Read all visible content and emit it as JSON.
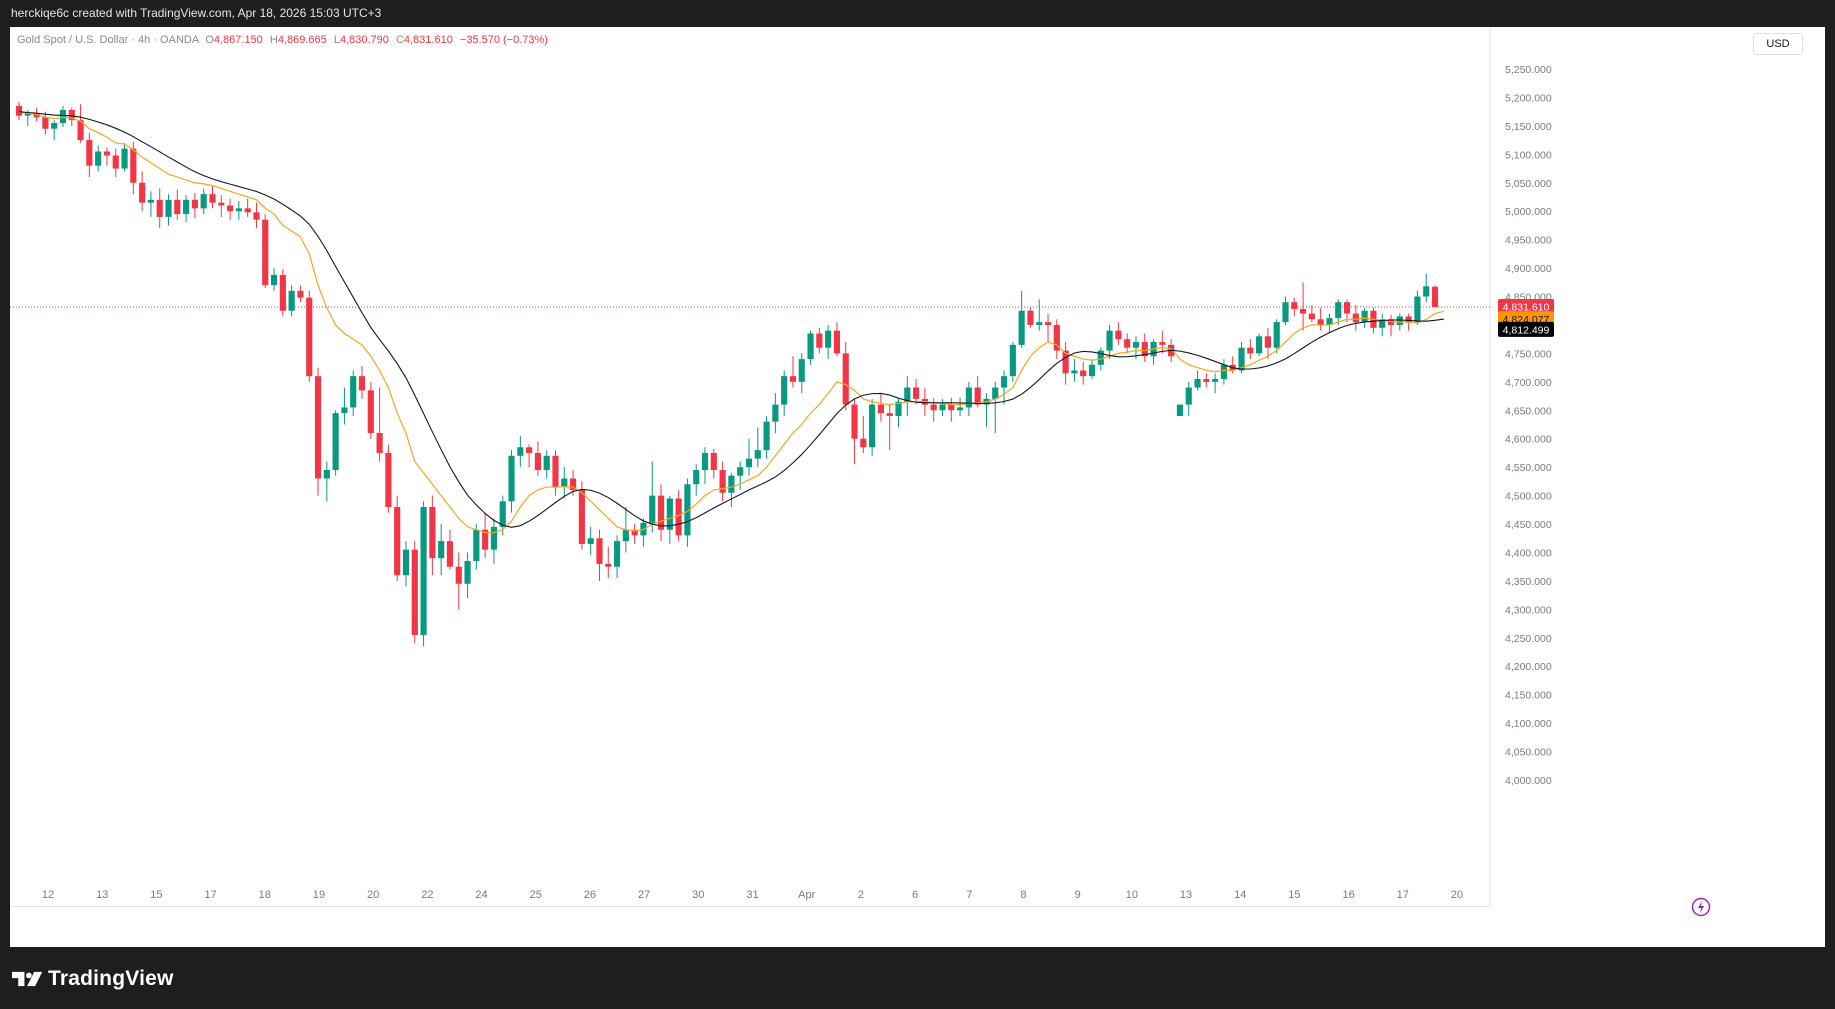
{
  "header": {
    "attribution": "herckiqe6c created with TradingView.com, Apr 18, 2026 15:03 UTC+3"
  },
  "legend": {
    "symbol": "Gold Spot / U.S. Dollar · 4h · OANDA",
    "open_label": "O",
    "open": "4,867.150",
    "high_label": "H",
    "high": "4,869.665",
    "low_label": "L",
    "low": "4,830.790",
    "close_label": "C",
    "close": "4,831.610",
    "change": "−35.570 (−0.73%)"
  },
  "currency": "USD",
  "price_badges": [
    {
      "value": "4,831.610",
      "color": "#f23645",
      "text_color": "#ffffff"
    },
    {
      "value": "4,824.077",
      "color": "#ff9800",
      "text_color": "#131722"
    },
    {
      "value": "4,812.499",
      "color": "#000000",
      "text_color": "#ffffff"
    }
  ],
  "brand": {
    "name": "TradingView"
  },
  "colors": {
    "up": "#089981",
    "down": "#f23645",
    "ema_fast": "#f5a623",
    "ema_slow": "#131722",
    "last_price_line": "#f23645"
  },
  "chart_data": {
    "type": "candlestick",
    "timeframe": "4h",
    "ylim": [
      4000,
      5250
    ],
    "y_ticks": [
      "5,250.000",
      "5,200.000",
      "5,150.000",
      "5,100.000",
      "5,050.000",
      "5,000.000",
      "4,950.000",
      "4,900.000",
      "4,850.000",
      "4,800.000",
      "4,750.000",
      "4,700.000",
      "4,650.000",
      "4,600.000",
      "4,550.000",
      "4,500.000",
      "4,450.000",
      "4,400.000",
      "4,350.000",
      "4,300.000",
      "4,250.000",
      "4,200.000",
      "4,150.000",
      "4,100.000",
      "4,050.000",
      "4,000.000"
    ],
    "x_labels": [
      "12",
      "13",
      "15",
      "17",
      "18",
      "19",
      "20",
      "22",
      "24",
      "25",
      "26",
      "27",
      "30",
      "31",
      "Apr",
      "2",
      "6",
      "7",
      "8",
      "9",
      "10",
      "13",
      "14",
      "15",
      "16",
      "17",
      "20"
    ],
    "last_price": 4831.61,
    "candles": [
      [
        5185,
        5192,
        5160,
        5168
      ],
      [
        5168,
        5178,
        5150,
        5172
      ],
      [
        5172,
        5182,
        5158,
        5165
      ],
      [
        5165,
        5175,
        5135,
        5145
      ],
      [
        5145,
        5160,
        5125,
        5155
      ],
      [
        5155,
        5185,
        5148,
        5178
      ],
      [
        5178,
        5182,
        5150,
        5160
      ],
      [
        5160,
        5188,
        5120,
        5125
      ],
      [
        5125,
        5138,
        5060,
        5080
      ],
      [
        5080,
        5115,
        5070,
        5105
      ],
      [
        5105,
        5112,
        5080,
        5098
      ],
      [
        5098,
        5110,
        5060,
        5075
      ],
      [
        5075,
        5120,
        5070,
        5110
      ],
      [
        5110,
        5122,
        5030,
        5050
      ],
      [
        5050,
        5070,
        5000,
        5015
      ],
      [
        5015,
        5035,
        4990,
        5020
      ],
      [
        5020,
        5040,
        4970,
        4990
      ],
      [
        4990,
        5030,
        4975,
        5020
      ],
      [
        5020,
        5038,
        4985,
        4995
      ],
      [
        4995,
        5028,
        4980,
        5020
      ],
      [
        5020,
        5032,
        4988,
        5005
      ],
      [
        5005,
        5040,
        4995,
        5030
      ],
      [
        5030,
        5045,
        5005,
        5015
      ],
      [
        5015,
        5028,
        4990,
        5010
      ],
      [
        5010,
        5022,
        4985,
        5000
      ],
      [
        5000,
        5018,
        4985,
        5005
      ],
      [
        5005,
        5022,
        4990,
        4998
      ],
      [
        4998,
        5015,
        4970,
        4985
      ],
      [
        4985,
        4995,
        4865,
        4870
      ],
      [
        4870,
        4900,
        4860,
        4888
      ],
      [
        4888,
        4898,
        4815,
        4825
      ],
      [
        4825,
        4870,
        4815,
        4860
      ],
      [
        4860,
        4870,
        4840,
        4848
      ],
      [
        4848,
        4860,
        4700,
        4710
      ],
      [
        4710,
        4725,
        4500,
        4530
      ],
      [
        4530,
        4560,
        4490,
        4545
      ],
      [
        4545,
        4650,
        4535,
        4645
      ],
      [
        4645,
        4690,
        4625,
        4655
      ],
      [
        4655,
        4720,
        4640,
        4710
      ],
      [
        4710,
        4728,
        4670,
        4685
      ],
      [
        4685,
        4700,
        4600,
        4610
      ],
      [
        4610,
        4690,
        4560,
        4575
      ],
      [
        4575,
        4590,
        4470,
        4480
      ],
      [
        4480,
        4500,
        4350,
        4360
      ],
      [
        4360,
        4420,
        4340,
        4405
      ],
      [
        4405,
        4420,
        4240,
        4255
      ],
      [
        4255,
        4490,
        4235,
        4480
      ],
      [
        4480,
        4500,
        4360,
        4390
      ],
      [
        4390,
        4450,
        4360,
        4420
      ],
      [
        4420,
        4440,
        4370,
        4375
      ],
      [
        4375,
        4400,
        4300,
        4345
      ],
      [
        4345,
        4400,
        4320,
        4385
      ],
      [
        4385,
        4450,
        4370,
        4440
      ],
      [
        4440,
        4470,
        4390,
        4405
      ],
      [
        4405,
        4460,
        4380,
        4445
      ],
      [
        4445,
        4500,
        4430,
        4490
      ],
      [
        4490,
        4580,
        4470,
        4570
      ],
      [
        4570,
        4605,
        4550,
        4585
      ],
      [
        4585,
        4590,
        4550,
        4575
      ],
      [
        4575,
        4595,
        4535,
        4545
      ],
      [
        4545,
        4580,
        4530,
        4570
      ],
      [
        4570,
        4580,
        4500,
        4515
      ],
      [
        4515,
        4550,
        4495,
        4530
      ],
      [
        4530,
        4545,
        4500,
        4510
      ],
      [
        4510,
        4525,
        4405,
        4415
      ],
      [
        4415,
        4445,
        4395,
        4425
      ],
      [
        4425,
        4440,
        4350,
        4380
      ],
      [
        4380,
        4410,
        4355,
        4375
      ],
      [
        4375,
        4430,
        4355,
        4420
      ],
      [
        4420,
        4480,
        4400,
        4440
      ],
      [
        4440,
        4450,
        4415,
        4430
      ],
      [
        4430,
        4460,
        4410,
        4452
      ],
      [
        4452,
        4560,
        4435,
        4500
      ],
      [
        4500,
        4520,
        4420,
        4440
      ],
      [
        4440,
        4500,
        4415,
        4495
      ],
      [
        4495,
        4510,
        4420,
        4430
      ],
      [
        4430,
        4530,
        4410,
        4520
      ],
      [
        4520,
        4555,
        4500,
        4545
      ],
      [
        4545,
        4585,
        4520,
        4575
      ],
      [
        4575,
        4582,
        4530,
        4545
      ],
      [
        4545,
        4560,
        4490,
        4505
      ],
      [
        4505,
        4540,
        4480,
        4535
      ],
      [
        4535,
        4560,
        4510,
        4550
      ],
      [
        4550,
        4600,
        4535,
        4565
      ],
      [
        4565,
        4620,
        4550,
        4580
      ],
      [
        4580,
        4640,
        4565,
        4630
      ],
      [
        4630,
        4680,
        4610,
        4660
      ],
      [
        4660,
        4720,
        4640,
        4710
      ],
      [
        4710,
        4745,
        4690,
        4700
      ],
      [
        4700,
        4750,
        4680,
        4740
      ],
      [
        4740,
        4790,
        4730,
        4785
      ],
      [
        4785,
        4795,
        4750,
        4760
      ],
      [
        4760,
        4800,
        4740,
        4790
      ],
      [
        4790,
        4805,
        4745,
        4750
      ],
      [
        4750,
        4770,
        4650,
        4660
      ],
      [
        4660,
        4670,
        4555,
        4600
      ],
      [
        4600,
        4640,
        4575,
        4585
      ],
      [
        4585,
        4670,
        4570,
        4660
      ],
      [
        4660,
        4680,
        4630,
        4645
      ],
      [
        4645,
        4660,
        4580,
        4640
      ],
      [
        4640,
        4670,
        4620,
        4665
      ],
      [
        4665,
        4710,
        4640,
        4690
      ],
      [
        4690,
        4705,
        4660,
        4670
      ],
      [
        4670,
        4690,
        4640,
        4660
      ],
      [
        4660,
        4672,
        4630,
        4650
      ],
      [
        4650,
        4670,
        4640,
        4660
      ],
      [
        4660,
        4672,
        4630,
        4650
      ],
      [
        4650,
        4672,
        4640,
        4655
      ],
      [
        4655,
        4700,
        4640,
        4690
      ],
      [
        4690,
        4710,
        4655,
        4660
      ],
      [
        4660,
        4680,
        4620,
        4670
      ],
      [
        4670,
        4700,
        4610,
        4690
      ],
      [
        4690,
        4720,
        4660,
        4710
      ],
      [
        4710,
        4770,
        4700,
        4765
      ],
      [
        4765,
        4860,
        4760,
        4825
      ],
      [
        4825,
        4830,
        4795,
        4800
      ],
      [
        4800,
        4845,
        4790,
        4805
      ],
      [
        4805,
        4820,
        4770,
        4800
      ],
      [
        4800,
        4810,
        4740,
        4755
      ],
      [
        4755,
        4770,
        4695,
        4715
      ],
      [
        4715,
        4740,
        4700,
        4720
      ],
      [
        4720,
        4735,
        4695,
        4710
      ],
      [
        4710,
        4740,
        4705,
        4730
      ],
      [
        4730,
        4760,
        4720,
        4755
      ],
      [
        4755,
        4800,
        4740,
        4790
      ],
      [
        4790,
        4805,
        4765,
        4775
      ],
      [
        4775,
        4785,
        4750,
        4760
      ],
      [
        4760,
        4780,
        4740,
        4770
      ],
      [
        4770,
        4785,
        4735,
        4745
      ],
      [
        4745,
        4775,
        4730,
        4770
      ],
      [
        4770,
        4790,
        4750,
        4765
      ],
      [
        4765,
        4775,
        4735,
        4745
      ],
      [
        4640,
        4660,
        4640,
        4660
      ],
      [
        4660,
        4700,
        4640,
        4690
      ],
      [
        4690,
        4720,
        4685,
        4705
      ],
      [
        4705,
        4715,
        4690,
        4700
      ],
      [
        4700,
        4715,
        4680,
        4705
      ],
      [
        4705,
        4740,
        4695,
        4730
      ],
      [
        4730,
        4745,
        4715,
        4720
      ],
      [
        4720,
        4770,
        4715,
        4760
      ],
      [
        4760,
        4775,
        4740,
        4750
      ],
      [
        4750,
        4785,
        4745,
        4780
      ],
      [
        4780,
        4795,
        4740,
        4760
      ],
      [
        4760,
        4810,
        4750,
        4805
      ],
      [
        4805,
        4850,
        4800,
        4840
      ],
      [
        4840,
        4848,
        4815,
        4828
      ],
      [
        4828,
        4875,
        4790,
        4820
      ],
      [
        4820,
        4835,
        4805,
        4810
      ],
      [
        4810,
        4830,
        4790,
        4800
      ],
      [
        4800,
        4820,
        4785,
        4812
      ],
      [
        4812,
        4845,
        4800,
        4840
      ],
      [
        4840,
        4845,
        4805,
        4820
      ],
      [
        4820,
        4835,
        4790,
        4805
      ],
      [
        4805,
        4830,
        4795,
        4825
      ],
      [
        4825,
        4830,
        4785,
        4795
      ],
      [
        4795,
        4820,
        4780,
        4810
      ],
      [
        4810,
        4818,
        4780,
        4800
      ],
      [
        4800,
        4820,
        4790,
        4815
      ],
      [
        4815,
        4820,
        4790,
        4805
      ],
      [
        4805,
        4860,
        4800,
        4850
      ],
      [
        4850,
        4890,
        4840,
        4868
      ],
      [
        4867.15,
        4869.665,
        4830.79,
        4831.61
      ]
    ],
    "ema_fast": [
      5175,
      5172,
      5170,
      5165,
      5163,
      5165,
      5164,
      5158,
      5145,
      5138,
      5130,
      5120,
      5118,
      5108,
      5095,
      5085,
      5075,
      5065,
      5060,
      5055,
      5050,
      5048,
      5045,
      5040,
      5035,
      5030,
      5025,
      5020,
      5005,
      4995,
      4975,
      4965,
      4955,
      4925,
      4870,
      4830,
      4800,
      4785,
      4775,
      4765,
      4745,
      4720,
      4690,
      4645,
      4610,
      4560,
      4540,
      4520,
      4500,
      4480,
      4460,
      4445,
      4440,
      4435,
      4435,
      4440,
      4455,
      4480,
      4500,
      4510,
      4515,
      4515,
      4516,
      4515,
      4505,
      4490,
      4475,
      4460,
      4445,
      4440,
      4438,
      4440,
      4450,
      4455,
      4460,
      4465,
      4472,
      4485,
      4500,
      4510,
      4512,
      4515,
      4520,
      4528,
      4535,
      4550,
      4570,
      4590,
      4610,
      4625,
      4645,
      4660,
      4680,
      4700,
      4695,
      4685,
      4670,
      4665,
      4662,
      4660,
      4662,
      4665,
      4665,
      4665,
      4663,
      4662,
      4660,
      4660,
      4662,
      4663,
      4665,
      4670,
      4678,
      4690,
      4720,
      4745,
      4760,
      4770,
      4765,
      4750,
      4745,
      4740,
      4738,
      4740,
      4745,
      4750,
      4752,
      4755,
      4755,
      4758,
      4760,
      4758,
      4740,
      4730,
      4725,
      4720,
      4718,
      4720,
      4720,
      4725,
      4730,
      4738,
      4745,
      4755,
      4770,
      4785,
      4795,
      4800,
      4800,
      4800,
      4805,
      4810,
      4810,
      4812,
      4810,
      4808,
      4806,
      4805,
      4805,
      4803,
      4810,
      4820,
      4824
    ]
  }
}
